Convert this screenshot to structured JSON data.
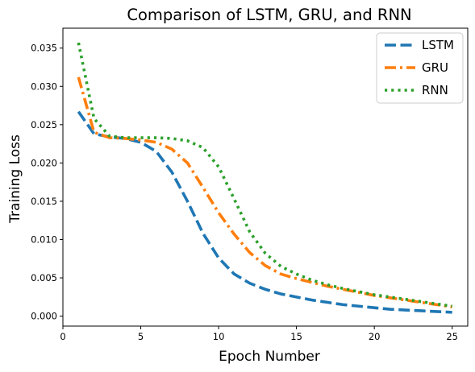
{
  "chart_data": {
    "type": "line",
    "title": "Comparison of LSTM, GRU, and RNN",
    "xlabel": "Epoch Number",
    "ylabel": "Training Loss",
    "xlim": [
      0,
      26
    ],
    "ylim": [
      -0.0013,
      0.0376
    ],
    "xticks": [
      0,
      5,
      10,
      15,
      20,
      25
    ],
    "xtick_labels": [
      "0",
      "5",
      "10",
      "15",
      "20",
      "25"
    ],
    "yticks": [
      0.0,
      0.005,
      0.01,
      0.015,
      0.02,
      0.025,
      0.03,
      0.035
    ],
    "ytick_labels": [
      "0.000",
      "0.005",
      "0.010",
      "0.015",
      "0.020",
      "0.025",
      "0.030",
      "0.035"
    ],
    "grid": false,
    "legend_position": "top-right",
    "x": [
      1,
      2,
      3,
      4,
      5,
      6,
      7,
      8,
      9,
      10,
      11,
      12,
      13,
      14,
      15,
      16,
      17,
      18,
      19,
      20,
      21,
      22,
      23,
      24,
      25
    ],
    "series": [
      {
        "name": "LSTM",
        "color": "#1f77b4",
        "style": "dashed",
        "values": [
          0.0267,
          0.0238,
          0.0234,
          0.0232,
          0.0227,
          0.0215,
          0.0188,
          0.015,
          0.0108,
          0.0076,
          0.0055,
          0.0043,
          0.0035,
          0.0029,
          0.0025,
          0.0021,
          0.0018,
          0.0015,
          0.0013,
          0.0011,
          0.0009,
          0.0008,
          0.0007,
          0.0006,
          0.0005
        ]
      },
      {
        "name": "GRU",
        "color": "#ff7f0e",
        "style": "dashdot",
        "values": [
          0.0312,
          0.024,
          0.0233,
          0.0232,
          0.023,
          0.0227,
          0.0218,
          0.02,
          0.0168,
          0.0135,
          0.0107,
          0.0083,
          0.0066,
          0.0055,
          0.0049,
          0.0044,
          0.0039,
          0.0035,
          0.0031,
          0.0027,
          0.0024,
          0.0021,
          0.0018,
          0.0015,
          0.0012
        ]
      },
      {
        "name": "RNN",
        "color": "#2ca02c",
        "style": "dotted",
        "values": [
          0.0357,
          0.0258,
          0.0235,
          0.0233,
          0.0233,
          0.0233,
          0.0232,
          0.0229,
          0.022,
          0.0195,
          0.0153,
          0.011,
          0.0082,
          0.0065,
          0.0055,
          0.0047,
          0.0041,
          0.0036,
          0.0032,
          0.0028,
          0.0025,
          0.0022,
          0.0019,
          0.0016,
          0.0013
        ]
      }
    ]
  }
}
